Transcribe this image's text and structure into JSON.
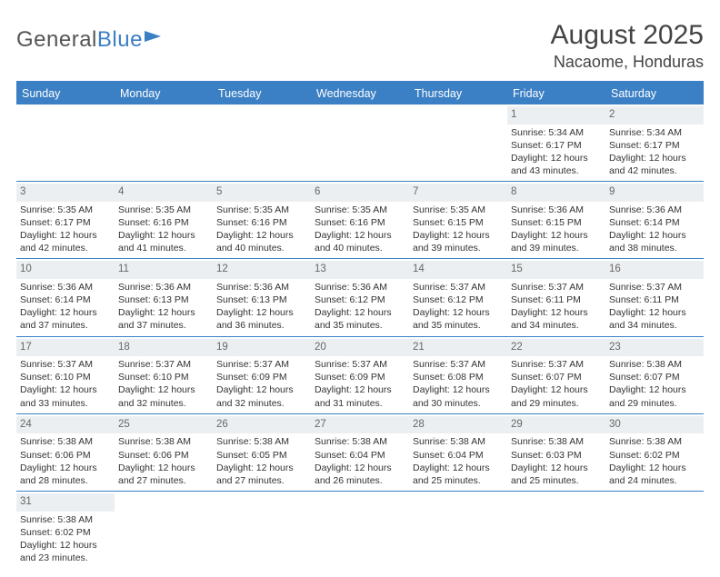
{
  "logo": {
    "part1": "General",
    "part2": "Blue"
  },
  "header": {
    "title": "August 2025",
    "subtitle": "Nacaome, Honduras"
  },
  "columns": [
    "Sunday",
    "Monday",
    "Tuesday",
    "Wednesday",
    "Thursday",
    "Friday",
    "Saturday"
  ],
  "colors": {
    "accent": "#3b7fc4",
    "header_bg": "#3b7fc4",
    "daynum_bg": "#eceff1"
  },
  "labels": {
    "sunrise": "Sunrise:",
    "sunset": "Sunset:",
    "daylight": "Daylight:"
  },
  "weeks": [
    [
      null,
      null,
      null,
      null,
      null,
      {
        "n": "1",
        "sunrise": "5:34 AM",
        "sunset": "6:17 PM",
        "dl1": "12 hours",
        "dl2": "and 43 minutes."
      },
      {
        "n": "2",
        "sunrise": "5:34 AM",
        "sunset": "6:17 PM",
        "dl1": "12 hours",
        "dl2": "and 42 minutes."
      }
    ],
    [
      {
        "n": "3",
        "sunrise": "5:35 AM",
        "sunset": "6:17 PM",
        "dl1": "12 hours",
        "dl2": "and 42 minutes."
      },
      {
        "n": "4",
        "sunrise": "5:35 AM",
        "sunset": "6:16 PM",
        "dl1": "12 hours",
        "dl2": "and 41 minutes."
      },
      {
        "n": "5",
        "sunrise": "5:35 AM",
        "sunset": "6:16 PM",
        "dl1": "12 hours",
        "dl2": "and 40 minutes."
      },
      {
        "n": "6",
        "sunrise": "5:35 AM",
        "sunset": "6:16 PM",
        "dl1": "12 hours",
        "dl2": "and 40 minutes."
      },
      {
        "n": "7",
        "sunrise": "5:35 AM",
        "sunset": "6:15 PM",
        "dl1": "12 hours",
        "dl2": "and 39 minutes."
      },
      {
        "n": "8",
        "sunrise": "5:36 AM",
        "sunset": "6:15 PM",
        "dl1": "12 hours",
        "dl2": "and 39 minutes."
      },
      {
        "n": "9",
        "sunrise": "5:36 AM",
        "sunset": "6:14 PM",
        "dl1": "12 hours",
        "dl2": "and 38 minutes."
      }
    ],
    [
      {
        "n": "10",
        "sunrise": "5:36 AM",
        "sunset": "6:14 PM",
        "dl1": "12 hours",
        "dl2": "and 37 minutes."
      },
      {
        "n": "11",
        "sunrise": "5:36 AM",
        "sunset": "6:13 PM",
        "dl1": "12 hours",
        "dl2": "and 37 minutes."
      },
      {
        "n": "12",
        "sunrise": "5:36 AM",
        "sunset": "6:13 PM",
        "dl1": "12 hours",
        "dl2": "and 36 minutes."
      },
      {
        "n": "13",
        "sunrise": "5:36 AM",
        "sunset": "6:12 PM",
        "dl1": "12 hours",
        "dl2": "and 35 minutes."
      },
      {
        "n": "14",
        "sunrise": "5:37 AM",
        "sunset": "6:12 PM",
        "dl1": "12 hours",
        "dl2": "and 35 minutes."
      },
      {
        "n": "15",
        "sunrise": "5:37 AM",
        "sunset": "6:11 PM",
        "dl1": "12 hours",
        "dl2": "and 34 minutes."
      },
      {
        "n": "16",
        "sunrise": "5:37 AM",
        "sunset": "6:11 PM",
        "dl1": "12 hours",
        "dl2": "and 34 minutes."
      }
    ],
    [
      {
        "n": "17",
        "sunrise": "5:37 AM",
        "sunset": "6:10 PM",
        "dl1": "12 hours",
        "dl2": "and 33 minutes."
      },
      {
        "n": "18",
        "sunrise": "5:37 AM",
        "sunset": "6:10 PM",
        "dl1": "12 hours",
        "dl2": "and 32 minutes."
      },
      {
        "n": "19",
        "sunrise": "5:37 AM",
        "sunset": "6:09 PM",
        "dl1": "12 hours",
        "dl2": "and 32 minutes."
      },
      {
        "n": "20",
        "sunrise": "5:37 AM",
        "sunset": "6:09 PM",
        "dl1": "12 hours",
        "dl2": "and 31 minutes."
      },
      {
        "n": "21",
        "sunrise": "5:37 AM",
        "sunset": "6:08 PM",
        "dl1": "12 hours",
        "dl2": "and 30 minutes."
      },
      {
        "n": "22",
        "sunrise": "5:37 AM",
        "sunset": "6:07 PM",
        "dl1": "12 hours",
        "dl2": "and 29 minutes."
      },
      {
        "n": "23",
        "sunrise": "5:38 AM",
        "sunset": "6:07 PM",
        "dl1": "12 hours",
        "dl2": "and 29 minutes."
      }
    ],
    [
      {
        "n": "24",
        "sunrise": "5:38 AM",
        "sunset": "6:06 PM",
        "dl1": "12 hours",
        "dl2": "and 28 minutes."
      },
      {
        "n": "25",
        "sunrise": "5:38 AM",
        "sunset": "6:06 PM",
        "dl1": "12 hours",
        "dl2": "and 27 minutes."
      },
      {
        "n": "26",
        "sunrise": "5:38 AM",
        "sunset": "6:05 PM",
        "dl1": "12 hours",
        "dl2": "and 27 minutes."
      },
      {
        "n": "27",
        "sunrise": "5:38 AM",
        "sunset": "6:04 PM",
        "dl1": "12 hours",
        "dl2": "and 26 minutes."
      },
      {
        "n": "28",
        "sunrise": "5:38 AM",
        "sunset": "6:04 PM",
        "dl1": "12 hours",
        "dl2": "and 25 minutes."
      },
      {
        "n": "29",
        "sunrise": "5:38 AM",
        "sunset": "6:03 PM",
        "dl1": "12 hours",
        "dl2": "and 25 minutes."
      },
      {
        "n": "30",
        "sunrise": "5:38 AM",
        "sunset": "6:02 PM",
        "dl1": "12 hours",
        "dl2": "and 24 minutes."
      }
    ],
    [
      {
        "n": "31",
        "sunrise": "5:38 AM",
        "sunset": "6:02 PM",
        "dl1": "12 hours",
        "dl2": "and 23 minutes."
      },
      null,
      null,
      null,
      null,
      null,
      null
    ]
  ]
}
